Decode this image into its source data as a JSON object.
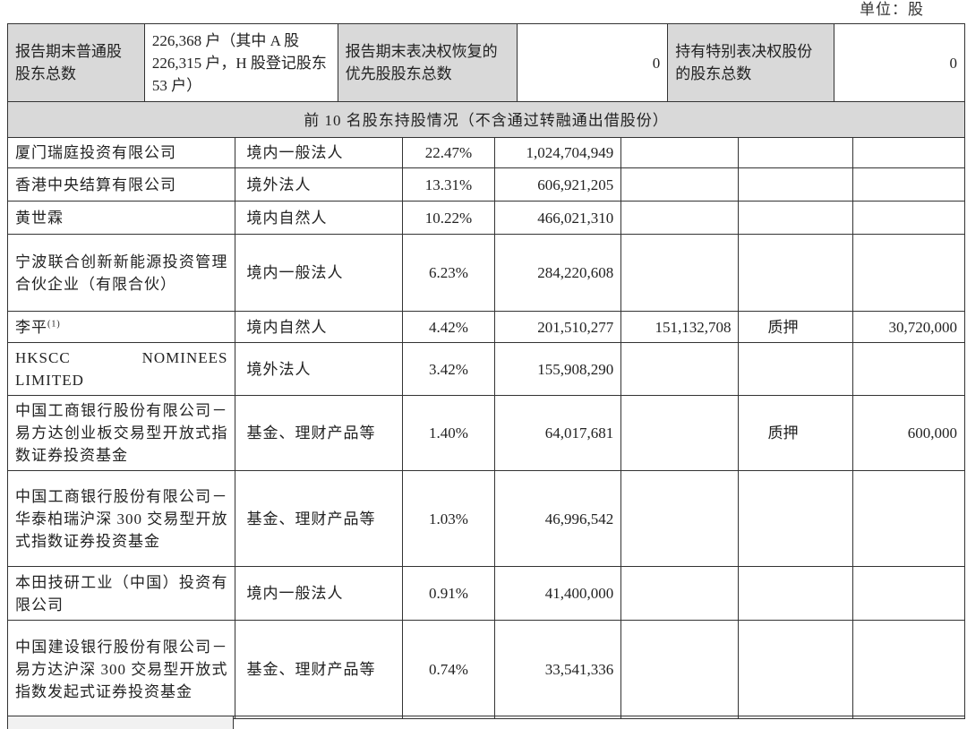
{
  "unit_label": "单位：股",
  "summary": {
    "common_holders_label": "报告期末普通股股东总数",
    "common_holders_value": "226,368 户（其中 A 股 226,315 户，H 股登记股东 53 户）",
    "preferred_label": "报告期末表决权恢复的优先股股东总数",
    "preferred_value": "0",
    "special_label": "持有特别表决权股份的股东总数",
    "special_value": "0",
    "section_title": "前 10 名股东持股情况（不含通过转融通出借股份）"
  },
  "holders": [
    {
      "name": "厦门瑞庭投资有限公司",
      "type": "境内一般法人",
      "pct": "22.47%",
      "shares": "1,024,704,949",
      "restricted": "",
      "status": "",
      "qty": ""
    },
    {
      "name": "香港中央结算有限公司",
      "type": "境外法人",
      "pct": "13.31%",
      "shares": "606,921,205",
      "restricted": "",
      "status": "",
      "qty": ""
    },
    {
      "name": "黄世霖",
      "type": "境内自然人",
      "pct": "10.22%",
      "shares": "466,021,310",
      "restricted": "",
      "status": "",
      "qty": ""
    },
    {
      "name": "宁波联合创新新能源投资管理合伙企业（有限合伙）",
      "type": "境内一般法人",
      "pct": "6.23%",
      "shares": "284,220,608",
      "restricted": "",
      "status": "",
      "qty": ""
    },
    {
      "name": "李平",
      "note": "(1)",
      "type": "境内自然人",
      "pct": "4.42%",
      "shares": "201,510,277",
      "restricted": "151,132,708",
      "status": "质押",
      "qty": "30,720,000"
    },
    {
      "name": "HKSCC NOMINEES LIMITED",
      "type": "境外法人",
      "pct": "3.42%",
      "shares": "155,908,290",
      "restricted": "",
      "status": "",
      "qty": ""
    },
    {
      "name": "中国工商银行股份有限公司－易方达创业板交易型开放式指数证券投资基金",
      "type": "基金、理财产品等",
      "pct": "1.40%",
      "shares": "64,017,681",
      "restricted": "",
      "status": "质押",
      "qty": "600,000"
    },
    {
      "name": "中国工商银行股份有限公司－华泰柏瑞沪深 300 交易型开放式指数证券投资基金",
      "type": "基金、理财产品等",
      "pct": "1.03%",
      "shares": "46,996,542",
      "restricted": "",
      "status": "",
      "qty": ""
    },
    {
      "name": "本田技研工业（中国）投资有限公司",
      "type": "境内一般法人",
      "pct": "0.91%",
      "shares": "41,400,000",
      "restricted": "",
      "status": "",
      "qty": ""
    },
    {
      "name": "中国建设银行股份有限公司－易方达沪深 300 交易型开放式指数发起式证券投资基金",
      "type": "基金、理财产品等",
      "pct": "0.74%",
      "shares": "33,541,336",
      "restricted": "",
      "status": "",
      "qty": ""
    }
  ]
}
